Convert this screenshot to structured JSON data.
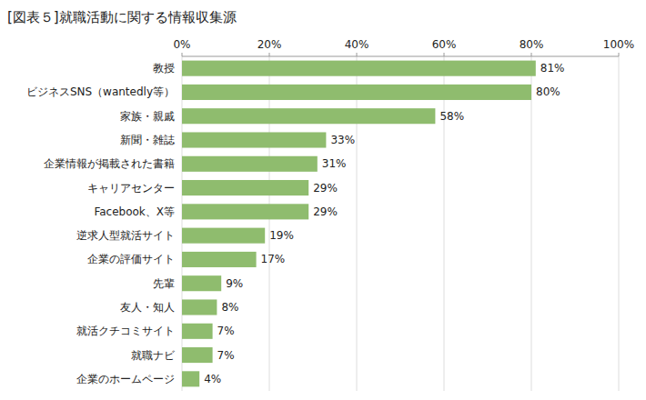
{
  "chart_data": {
    "type": "bar",
    "orientation": "horizontal",
    "title": "[図表５]就職活動に関する情報収集源",
    "categories": [
      "教授",
      "ビジネスSNS（wantedly等）",
      "家族・親戚",
      "新聞・雑誌",
      "企業情報が掲載された書籍",
      "キャリアセンター",
      "Facebook、X等",
      "逆求人型就活サイト",
      "企業の評価サイト",
      "先輩",
      "友人・知人",
      "就活クチコミサイト",
      "就職ナビ",
      "企業のホームページ"
    ],
    "values": [
      81,
      80,
      58,
      33,
      31,
      29,
      29,
      19,
      17,
      9,
      8,
      7,
      7,
      4
    ],
    "value_labels": [
      "81%",
      "80%",
      "58%",
      "33%",
      "31%",
      "29%",
      "29%",
      "19%",
      "17%",
      "9%",
      "8%",
      "7%",
      "7%",
      "4%"
    ],
    "data_labels": true,
    "color": "#8fbc6e",
    "xlim": [
      0,
      100
    ],
    "xticks": [
      {
        "value": 0,
        "label": "0%"
      },
      {
        "value": 20,
        "label": "20%"
      },
      {
        "value": 40,
        "label": "40%"
      },
      {
        "value": 60,
        "label": "60%"
      },
      {
        "value": 80,
        "label": "80%"
      },
      {
        "value": 100,
        "label": "100%"
      }
    ],
    "grid": true
  }
}
